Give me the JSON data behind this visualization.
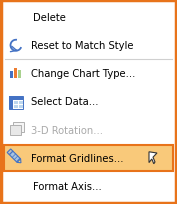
{
  "figsize": [
    1.77,
    2.05
  ],
  "dpi": 100,
  "bg_color": "#FFFFFF",
  "outer_border_color": "#E8731A",
  "outer_border_lw": 2.5,
  "highlight_bg": "#F9C97A",
  "highlight_border": "#E8731A",
  "separator_color": "#D0D0D0",
  "text_color": "#000000",
  "disabled_color": "#AAAAAA",
  "menu_items": [
    {
      "text": "Delete",
      "underline_idx": 0,
      "has_icon": false,
      "disabled": false,
      "highlighted": false,
      "separator_below": false,
      "indent": true
    },
    {
      "text": "Reset to Match Style",
      "underline_idx": -1,
      "has_icon": true,
      "icon_type": "reset",
      "disabled": false,
      "highlighted": false,
      "separator_below": true,
      "indent": false
    },
    {
      "text": "Change Chart Type...",
      "underline_idx": -1,
      "has_icon": true,
      "icon_type": "chart",
      "disabled": false,
      "highlighted": false,
      "separator_below": false,
      "indent": false
    },
    {
      "text": "Select Data...",
      "underline_idx": 0,
      "has_icon": true,
      "icon_type": "data",
      "disabled": false,
      "highlighted": false,
      "separator_below": false,
      "indent": false
    },
    {
      "text": "3-D Rotation...",
      "underline_idx": -1,
      "has_icon": true,
      "icon_type": "rotation",
      "disabled": true,
      "highlighted": false,
      "separator_below": false,
      "indent": false
    },
    {
      "text": "Format Gridlines...",
      "underline_idx": 0,
      "has_icon": true,
      "icon_type": "gridlines",
      "disabled": false,
      "highlighted": true,
      "separator_below": false,
      "indent": false
    },
    {
      "text": "Format Axis...",
      "underline_idx": 0,
      "has_icon": false,
      "disabled": false,
      "highlighted": false,
      "separator_below": false,
      "indent": true
    }
  ]
}
